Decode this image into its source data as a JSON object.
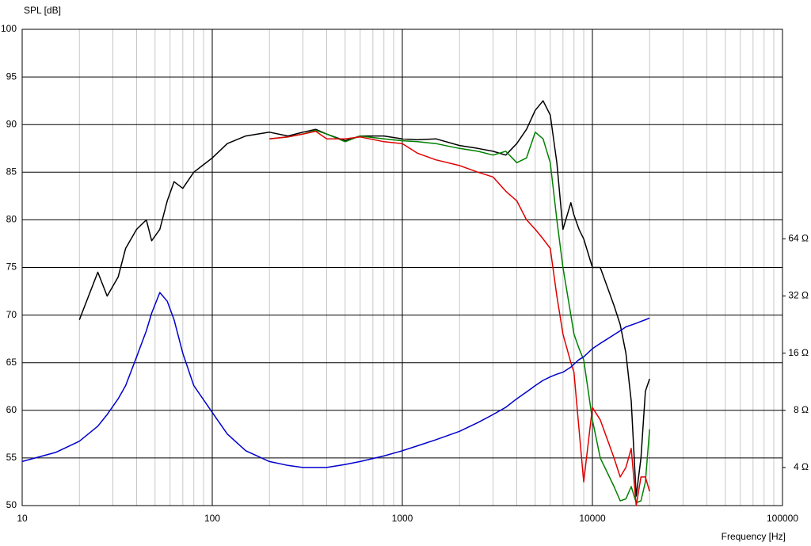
{
  "chart_data": {
    "type": "line",
    "ylabel": "SPL [dB]",
    "xlabel": "Frequency [Hz]",
    "xscale": "log",
    "y2scale": "log",
    "grid": true,
    "xlim": [
      10,
      100000
    ],
    "xticks": [
      10,
      100,
      1000,
      10000,
      100000
    ],
    "ylim": [
      50,
      100
    ],
    "yticks": [
      50,
      55,
      60,
      65,
      70,
      75,
      80,
      85,
      90,
      95,
      100
    ],
    "y2lim": [
      2.52,
      812
    ],
    "y2ticks": [
      {
        "value": 4,
        "label": "4 Ω"
      },
      {
        "value": 8,
        "label": "8 Ω"
      },
      {
        "value": 16,
        "label": "16 Ω"
      },
      {
        "value": 32,
        "label": "32 Ω"
      },
      {
        "value": 64,
        "label": "64 Ω"
      }
    ],
    "x": [
      10,
      15,
      20,
      25,
      28,
      32,
      35,
      40,
      45,
      48,
      53,
      58,
      63,
      70,
      80,
      100,
      120,
      150,
      200,
      250,
      300,
      350,
      400,
      500,
      600,
      800,
      1000,
      1200,
      1500,
      2000,
      2500,
      3000,
      3500,
      4000,
      4500,
      5000,
      5500,
      6000,
      6500,
      7000,
      7700,
      8000,
      8500,
      9000,
      10000,
      11000,
      13000,
      14000,
      15000,
      16000,
      17000,
      18000,
      19000,
      20000
    ],
    "series": [
      {
        "color": "#000000",
        "values": [
          null,
          null,
          69.5,
          74.5,
          72,
          74,
          77,
          79,
          80,
          77.8,
          79,
          82,
          84,
          83.3,
          85,
          86.5,
          88,
          88.8,
          89.2,
          88.8,
          89.2,
          89.5,
          89,
          88.3,
          88.8,
          88.8,
          88.5,
          88.4,
          88.5,
          87.8,
          87.5,
          87.2,
          86.8,
          88,
          89.5,
          91.5,
          92.5,
          91,
          86,
          79,
          81.8,
          80.5,
          79,
          78,
          75,
          75,
          71,
          69,
          66,
          61,
          51,
          55,
          62,
          63.3
        ]
      },
      {
        "color": "#008000",
        "values": [
          null,
          null,
          null,
          null,
          null,
          null,
          null,
          null,
          null,
          null,
          null,
          null,
          null,
          null,
          null,
          null,
          null,
          null,
          88.5,
          88.7,
          89,
          89.4,
          89,
          88.2,
          88.8,
          88.5,
          88.3,
          88.2,
          88,
          87.5,
          87.2,
          86.8,
          87.2,
          86,
          86.5,
          89.2,
          88.5,
          86,
          80,
          75,
          70,
          68,
          66.5,
          65.3,
          59,
          55,
          52,
          50.5,
          50.7,
          52,
          50.3,
          50.5,
          52.5,
          58
        ]
      },
      {
        "color": "#e00000",
        "values": [
          null,
          null,
          null,
          null,
          null,
          null,
          null,
          null,
          null,
          null,
          null,
          null,
          null,
          null,
          null,
          null,
          null,
          null,
          88.5,
          88.7,
          89,
          89.3,
          88.5,
          88.5,
          88.7,
          88.2,
          88,
          87,
          86.3,
          85.7,
          85,
          84.5,
          83,
          82,
          80,
          79,
          78,
          77,
          72,
          68,
          65,
          64,
          58,
          52.5,
          60.3,
          59,
          55,
          53,
          54,
          56,
          50,
          53,
          53,
          51.5
        ]
      },
      {
        "color": "#0000cc",
        "axis": "y2",
        "values": [
          4.3,
          4.8,
          5.5,
          6.6,
          7.6,
          9.2,
          10.8,
          15.3,
          21,
          26,
          33.4,
          30,
          24,
          16,
          10.8,
          7.8,
          6,
          4.9,
          4.3,
          4.1,
          4.0,
          4.0,
          4.0,
          4.15,
          4.3,
          4.6,
          4.9,
          5.2,
          5.6,
          6.2,
          6.9,
          7.6,
          8.3,
          9.2,
          10,
          10.8,
          11.5,
          12,
          12.4,
          12.7,
          13.5,
          14,
          14.8,
          15.3,
          16.9,
          18,
          20,
          21,
          22,
          22.5,
          23,
          23.5,
          24,
          24.5
        ]
      }
    ]
  }
}
